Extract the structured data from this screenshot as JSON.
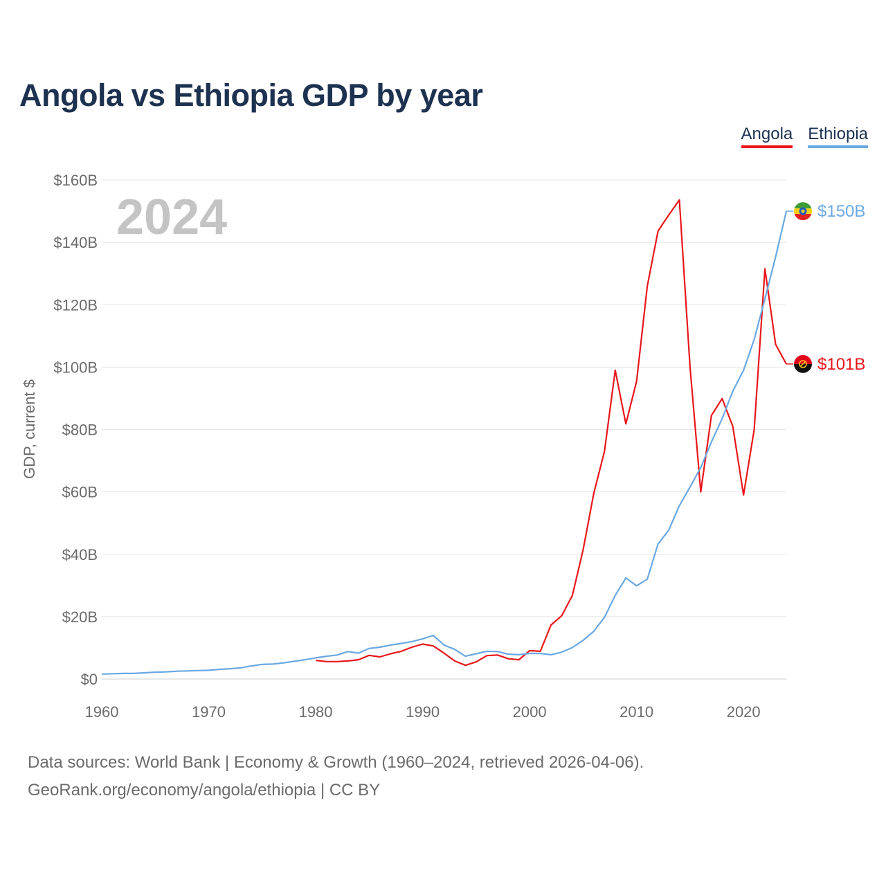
{
  "title": "Angola vs Ethiopia GDP by year",
  "legend": [
    {
      "label": "Angola",
      "color": "#e8161b"
    },
    {
      "label": "Ethiopia",
      "color": "#6aa8e2"
    }
  ],
  "year_display": "2024",
  "end_labels": {
    "angola": "$101B",
    "ethiopia": "$150B"
  },
  "source": {
    "line1": "Data sources: World Bank | Economy & Growth (1960–2024, retrieved 2026-04-06).",
    "line2": "GeoRank.org/economy/angola/ethiopia | CC BY"
  },
  "chart_data": {
    "type": "line",
    "title": "Angola vs Ethiopia GDP by year",
    "xlabel": "",
    "ylabel": "GDP, current $",
    "xlim": [
      1960,
      2024
    ],
    "ylim": [
      0,
      160
    ],
    "y_unit": "billion current US$",
    "xticks": [
      1960,
      1970,
      1980,
      1990,
      2000,
      2010,
      2020
    ],
    "xtick_labels": [
      "1960",
      "1970",
      "1980",
      "1990",
      "2000",
      "2010",
      "2020"
    ],
    "yticks": [
      0,
      20,
      40,
      60,
      80,
      100,
      120,
      140,
      160
    ],
    "ytick_labels": [
      "$0",
      "$20B",
      "$40B",
      "$60B",
      "$80B",
      "$100B",
      "$120B",
      "$140B",
      "$160B"
    ],
    "grid": true,
    "legend_position": "top-right",
    "series": [
      {
        "name": "Angola",
        "color": "#e8161b",
        "x": [
          1980,
          1981,
          1982,
          1983,
          1984,
          1985,
          1986,
          1987,
          1988,
          1989,
          1990,
          1991,
          1992,
          1993,
          1994,
          1995,
          1996,
          1997,
          1998,
          1999,
          2000,
          2001,
          2002,
          2003,
          2004,
          2005,
          2006,
          2007,
          2008,
          2009,
          2010,
          2011,
          2012,
          2013,
          2014,
          2015,
          2016,
          2017,
          2018,
          2019,
          2020,
          2021,
          2022,
          2023,
          2024
        ],
        "values": [
          6.0,
          5.6,
          5.6,
          5.8,
          6.2,
          7.6,
          7.1,
          8.1,
          8.9,
          10.2,
          11.2,
          10.6,
          8.3,
          5.8,
          4.4,
          5.5,
          7.5,
          7.7,
          6.5,
          6.2,
          9.1,
          8.9,
          17.3,
          20.3,
          26.8,
          41.4,
          59.5,
          73.0,
          99.0,
          81.8,
          95.5,
          125.9,
          143.6,
          148.7,
          153.6,
          100.0,
          60.0,
          84.5,
          89.9,
          81.0,
          59.0,
          80.0,
          131.5,
          107.3,
          101.0
        ]
      },
      {
        "name": "Ethiopia",
        "color": "#6aa8e2",
        "x": [
          1960,
          1961,
          1962,
          1963,
          1964,
          1965,
          1966,
          1967,
          1968,
          1969,
          1970,
          1971,
          1972,
          1973,
          1974,
          1975,
          1976,
          1977,
          1978,
          1979,
          1980,
          1981,
          1982,
          1983,
          1984,
          1985,
          1986,
          1987,
          1988,
          1989,
          1990,
          1991,
          1992,
          1993,
          1994,
          1995,
          1996,
          1997,
          1998,
          1999,
          2000,
          2001,
          2002,
          2003,
          2004,
          2005,
          2006,
          2007,
          2008,
          2009,
          2010,
          2011,
          2012,
          2013,
          2014,
          2015,
          2016,
          2017,
          2018,
          2019,
          2020,
          2021,
          2022,
          2023,
          2024
        ],
        "values": [
          1.6,
          1.7,
          1.8,
          1.8,
          2.0,
          2.2,
          2.3,
          2.5,
          2.6,
          2.7,
          2.8,
          3.1,
          3.3,
          3.6,
          4.2,
          4.7,
          4.8,
          5.2,
          5.7,
          6.2,
          6.8,
          7.3,
          7.7,
          8.8,
          8.3,
          9.8,
          10.2,
          10.9,
          11.4,
          12.0,
          12.9,
          14.0,
          10.9,
          9.5,
          7.3,
          8.1,
          8.9,
          8.8,
          8.0,
          7.8,
          8.2,
          8.2,
          7.8,
          8.6,
          10.1,
          12.4,
          15.3,
          19.8,
          26.8,
          32.4,
          29.9,
          32.0,
          43.3,
          47.7,
          55.6,
          61.6,
          67.8,
          76.0,
          83.5,
          92.3,
          99.0,
          108.9,
          121.9,
          135.3,
          150.0
        ]
      }
    ]
  }
}
